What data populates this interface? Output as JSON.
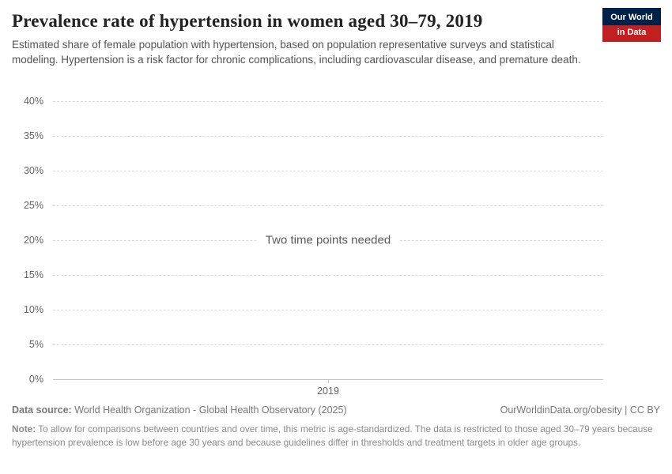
{
  "header": {
    "title": "Prevalence rate of hypertension in women aged 30–79, 2019",
    "subtitle": "Estimated share of female population with hypertension, based on population representative surveys and statistical modeling. Hypertension is a risk factor for chronic complications, including cardiovascular disease, and premature death."
  },
  "logo": {
    "line1": "Our World",
    "line2": "in Data"
  },
  "colors": {
    "logo_blue": "#002147",
    "logo_red": "#c0201f"
  },
  "chart_data": {
    "type": "line",
    "title": "Prevalence rate of hypertension in women aged 30–79, 2019",
    "series": [],
    "x": [
      "2019"
    ],
    "xticks": [
      "2019"
    ],
    "yticks": [
      "40%",
      "35%",
      "30%",
      "25%",
      "20%",
      "15%",
      "10%",
      "5%",
      "0%"
    ],
    "ytick_values": [
      40,
      35,
      30,
      25,
      20,
      15,
      10,
      5,
      0
    ],
    "ylim": [
      0,
      40
    ],
    "xlabel": "",
    "ylabel": "",
    "grid": "horizontal-dashed",
    "legend": "none",
    "empty_message": "Two time points needed"
  },
  "footer": {
    "source_label": "Data source:",
    "source_text": "World Health Organization - Global Health Observatory (2025)",
    "attribution": "OurWorldinData.org/obesity | CC BY",
    "note_label": "Note:",
    "note_text": "To allow for comparisons between countries and over time, this metric is age-standardized. The data is restricted to those aged 30–79 years because hypertension prevalence is low before age 30 years and because guidelines differ in thresholds and treatment targets in older age groups."
  }
}
